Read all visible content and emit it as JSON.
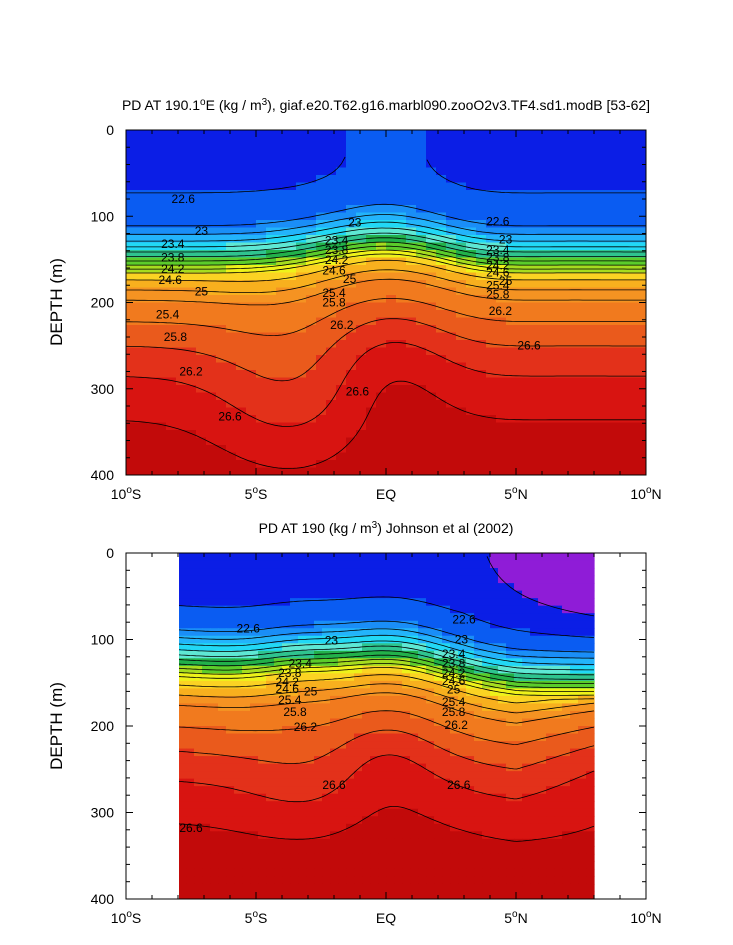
{
  "colors": {
    "scale": [
      "#8f1cd7",
      "#0b1ee6",
      "#0a5cf2",
      "#1a8ef7",
      "#23b4fb",
      "#22d8f5",
      "#5ee8d4",
      "#2fc48f",
      "#22b14a",
      "#5bcc2b",
      "#a6dc1f",
      "#eef21a",
      "#fbd323",
      "#f8b01e",
      "#f59322",
      "#f17a1e",
      "#ea5a1c",
      "#e3311a",
      "#d81411",
      "#c20a0a"
    ],
    "levels": [
      22.2,
      22.6,
      23.0,
      23.2,
      23.4,
      23.6,
      23.8,
      24.0,
      24.2,
      24.4,
      24.6,
      24.8,
      25.0,
      25.2,
      25.4,
      25.8,
      26.2,
      26.6,
      27.0
    ]
  },
  "chart_data": [
    {
      "type": "contour",
      "title_pre": "PD AT 190.1",
      "title_sup": "o",
      "title_mid": "E (kg / m",
      "title_sup2": "3",
      "title_post": "), giaf.e20.T62.g16.marbl090.zooO2v3.TF4.sd1.modB [53-62]",
      "ylabel": "DEPTH (m)",
      "xlim": [
        -10,
        10
      ],
      "ylim": [
        400,
        0
      ],
      "x_ticks": [
        {
          "pre": "10",
          "sup": "o",
          "post": "S"
        },
        {
          "pre": "5",
          "sup": "o",
          "post": "S"
        },
        {
          "pre": "EQ",
          "sup": "",
          "post": ""
        },
        {
          "pre": "5",
          "sup": "o",
          "post": "N"
        },
        {
          "pre": "10",
          "sup": "o",
          "post": "N"
        }
      ],
      "x_tick_values": [
        -10,
        -5,
        0,
        5,
        10
      ],
      "y_ticks": [
        "0",
        "100",
        "200",
        "300",
        "400"
      ],
      "y_tick_values": [
        0,
        100,
        200,
        300,
        400
      ],
      "data_extent": [
        -10,
        10
      ],
      "contour_labels": [
        {
          "text": "22.6",
          "lat": -7.8,
          "depth": 80
        },
        {
          "text": "23",
          "lat": -7.1,
          "depth": 117
        },
        {
          "text": "23.4",
          "lat": -8.2,
          "depth": 132
        },
        {
          "text": "23.8",
          "lat": -8.2,
          "depth": 148
        },
        {
          "text": "24.2",
          "lat": -8.2,
          "depth": 161
        },
        {
          "text": "24.6",
          "lat": -8.3,
          "depth": 174
        },
        {
          "text": "25",
          "lat": -7.1,
          "depth": 187
        },
        {
          "text": "25.4",
          "lat": -8.4,
          "depth": 214
        },
        {
          "text": "25.8",
          "lat": -8.1,
          "depth": 240
        },
        {
          "text": "26.2",
          "lat": -7.5,
          "depth": 280
        },
        {
          "text": "26.6",
          "lat": -6.0,
          "depth": 332
        },
        {
          "text": "23",
          "lat": -1.2,
          "depth": 107
        },
        {
          "text": "23.4",
          "lat": -1.9,
          "depth": 128
        },
        {
          "text": "23.8",
          "lat": -1.9,
          "depth": 139
        },
        {
          "text": "24.2",
          "lat": -1.9,
          "depth": 151
        },
        {
          "text": "24.6",
          "lat": -2.0,
          "depth": 163
        },
        {
          "text": "25",
          "lat": -1.4,
          "depth": 173
        },
        {
          "text": "25.4",
          "lat": -2.0,
          "depth": 189
        },
        {
          "text": "25.8",
          "lat": -2.0,
          "depth": 200
        },
        {
          "text": "26.2",
          "lat": -1.7,
          "depth": 226
        },
        {
          "text": "26.6",
          "lat": -1.1,
          "depth": 303
        },
        {
          "text": "22.6",
          "lat": 4.3,
          "depth": 106
        },
        {
          "text": "23",
          "lat": 4.6,
          "depth": 127
        },
        {
          "text": "23.4",
          "lat": 4.3,
          "depth": 139
        },
        {
          "text": "23.8",
          "lat": 4.3,
          "depth": 148
        },
        {
          "text": "24.2",
          "lat": 4.3,
          "depth": 157
        },
        {
          "text": "24.6",
          "lat": 4.3,
          "depth": 165
        },
        {
          "text": "25",
          "lat": 4.6,
          "depth": 175
        },
        {
          "text": "25.4",
          "lat": 4.3,
          "depth": 180
        },
        {
          "text": "25.8",
          "lat": 4.3,
          "depth": 191
        },
        {
          "text": "26.2",
          "lat": 4.4,
          "depth": 210
        },
        {
          "text": "26.6",
          "lat": 5.5,
          "depth": 250
        }
      ]
    },
    {
      "type": "contour",
      "title_pre": "PD AT 190 (kg / m",
      "title_sup": "3",
      "title_mid": ") Johnson et al (2002)",
      "title_sup2": "",
      "title_post": "",
      "ylabel": "DEPTH (m)",
      "xlim": [
        -10,
        10
      ],
      "ylim": [
        400,
        0
      ],
      "x_ticks": [
        {
          "pre": "10",
          "sup": "o",
          "post": "S"
        },
        {
          "pre": "5",
          "sup": "o",
          "post": "S"
        },
        {
          "pre": "EQ",
          "sup": "",
          "post": ""
        },
        {
          "pre": "5",
          "sup": "o",
          "post": "N"
        },
        {
          "pre": "10",
          "sup": "o",
          "post": "N"
        }
      ],
      "x_tick_values": [
        -10,
        -5,
        0,
        5,
        10
      ],
      "y_ticks": [
        "0",
        "100",
        "200",
        "300",
        "400"
      ],
      "y_tick_values": [
        0,
        100,
        200,
        300,
        400
      ],
      "data_extent": [
        -8,
        8
      ],
      "contour_labels": [
        {
          "text": "22.6",
          "lat": -5.3,
          "depth": 87
        },
        {
          "text": "23",
          "lat": -2.1,
          "depth": 101
        },
        {
          "text": "23.4",
          "lat": -3.3,
          "depth": 128
        },
        {
          "text": "23.8",
          "lat": -3.7,
          "depth": 139
        },
        {
          "text": "24.2",
          "lat": -3.8,
          "depth": 149
        },
        {
          "text": "24.6",
          "lat": -3.8,
          "depth": 157
        },
        {
          "text": "25",
          "lat": -2.9,
          "depth": 160
        },
        {
          "text": "25.4",
          "lat": -3.7,
          "depth": 170
        },
        {
          "text": "25.8",
          "lat": -3.5,
          "depth": 184
        },
        {
          "text": "26.2",
          "lat": -3.1,
          "depth": 201
        },
        {
          "text": "26.6",
          "lat": -2.0,
          "depth": 268
        },
        {
          "text": "26.6",
          "lat": -7.5,
          "depth": 318
        },
        {
          "text": "22.6",
          "lat": 3.0,
          "depth": 77
        },
        {
          "text": "23",
          "lat": 2.9,
          "depth": 100
        },
        {
          "text": "23.4",
          "lat": 2.6,
          "depth": 117
        },
        {
          "text": "23.8",
          "lat": 2.6,
          "depth": 128
        },
        {
          "text": "24.2",
          "lat": 2.6,
          "depth": 139
        },
        {
          "text": "24.6",
          "lat": 2.6,
          "depth": 148
        },
        {
          "text": "25",
          "lat": 2.6,
          "depth": 158
        },
        {
          "text": "25.4",
          "lat": 2.6,
          "depth": 172
        },
        {
          "text": "25.8",
          "lat": 2.6,
          "depth": 184
        },
        {
          "text": "26.2",
          "lat": 2.7,
          "depth": 199
        },
        {
          "text": "26.6",
          "lat": 2.8,
          "depth": 268
        }
      ]
    }
  ]
}
